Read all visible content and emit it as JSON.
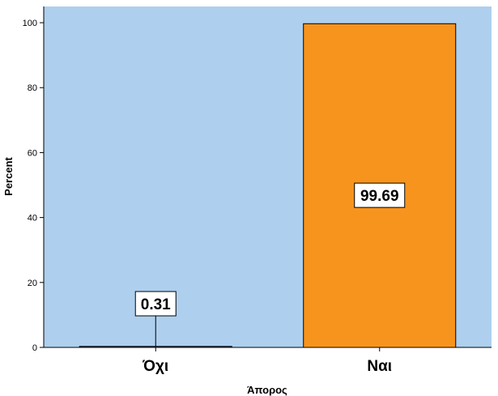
{
  "chart_data": {
    "type": "bar",
    "categories": [
      "Όχι",
      "Ναι"
    ],
    "values": [
      0.31,
      99.69
    ],
    "data_labels": [
      "0.31",
      "99.69"
    ],
    "xlabel": "Άπορος",
    "ylabel": "Percent",
    "ylim": [
      0,
      105
    ],
    "yticks": [
      0,
      20,
      40,
      60,
      80,
      100
    ],
    "grid": false,
    "colors": {
      "plot_background": "#aecfed",
      "bar_fill": [
        "#4a7fb5",
        "#f7941d"
      ],
      "bar_stroke": "#000000",
      "label_box": "#ffffff"
    }
  }
}
